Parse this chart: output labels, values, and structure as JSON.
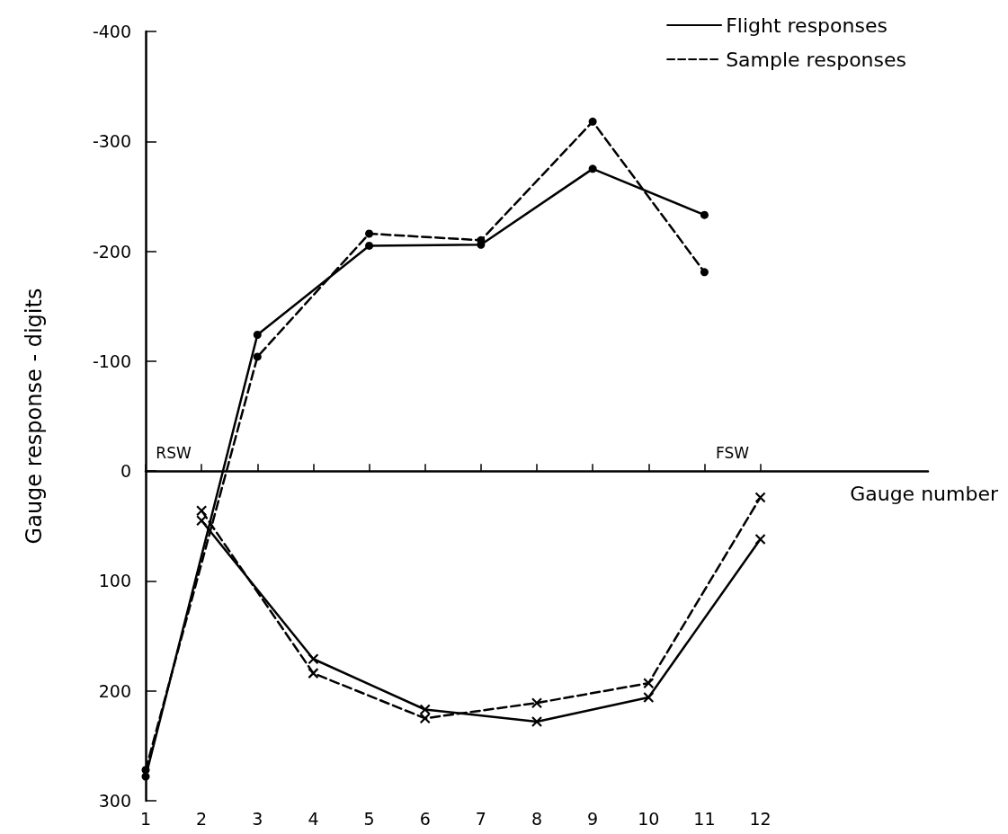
{
  "chart_data": {
    "type": "line",
    "xlabel": "Gauge number",
    "ylabel": "Gauge response - digits",
    "xlim": [
      1,
      15
    ],
    "xticks": [
      1,
      2,
      3,
      4,
      5,
      6,
      7,
      8,
      9,
      10,
      11,
      12
    ],
    "ylim": [
      300,
      -400
    ],
    "yticks": [
      -400,
      -300,
      -200,
      -100,
      0,
      100,
      200,
      300
    ],
    "legend": "top right",
    "annotations": [
      "RSW",
      "FSW"
    ],
    "series": [
      {
        "name": "Flight responses",
        "color": "#000000",
        "marker": "circle",
        "line_style": "solid",
        "x": [
          1,
          3,
          5,
          7,
          9,
          11
        ],
        "values": [
          278,
          -124,
          -205,
          -206,
          -275,
          -233
        ]
      },
      {
        "name": "Sample responses",
        "color": "#000000",
        "marker": "circle",
        "line_style": "dashed",
        "x": [
          1,
          3,
          5,
          7,
          9,
          11
        ],
        "values": [
          272,
          -104,
          -216,
          -210,
          -318,
          -181
        ]
      },
      {
        "color": "#000000",
        "marker": "cross",
        "line_style": "solid",
        "x": [
          2,
          4,
          6,
          8,
          10,
          12
        ],
        "values": [
          45,
          171,
          217,
          228,
          206,
          62
        ]
      },
      {
        "color": "#000000",
        "marker": "cross",
        "line_style": "dashed",
        "x": [
          2,
          4,
          6,
          8,
          10,
          12
        ],
        "values": [
          36,
          184,
          225,
          211,
          193,
          24
        ]
      }
    ]
  }
}
